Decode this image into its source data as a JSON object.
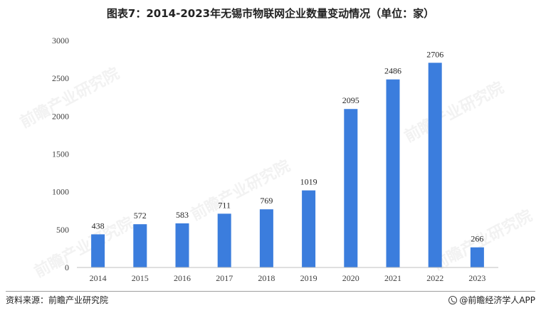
{
  "title": "图表7：2014-2023年无锡市物联网企业数量变动情况（单位：家）",
  "source": "资料来源：前瞻产业研究院",
  "brand": "@前瞻经济学人APP",
  "watermark": "前瞻产业研究院",
  "colors": {
    "bar": "#3b7ddd",
    "axis": "#bfbfbf"
  },
  "chart_data": {
    "type": "bar",
    "title": "图表7：2014-2023年无锡市物联网企业数量变动情况（单位：家）",
    "categories": [
      "2014",
      "2015",
      "2016",
      "2017",
      "2018",
      "2019",
      "2020",
      "2021",
      "2022",
      "2023"
    ],
    "values": [
      438,
      572,
      583,
      711,
      769,
      1019,
      2095,
      2486,
      2706,
      266
    ],
    "xlabel": "",
    "ylabel": "",
    "ylim": [
      0,
      3000
    ],
    "yticks": [
      0,
      500,
      1000,
      1500,
      2000,
      2500,
      3000
    ],
    "grid": false,
    "legend": "none"
  }
}
